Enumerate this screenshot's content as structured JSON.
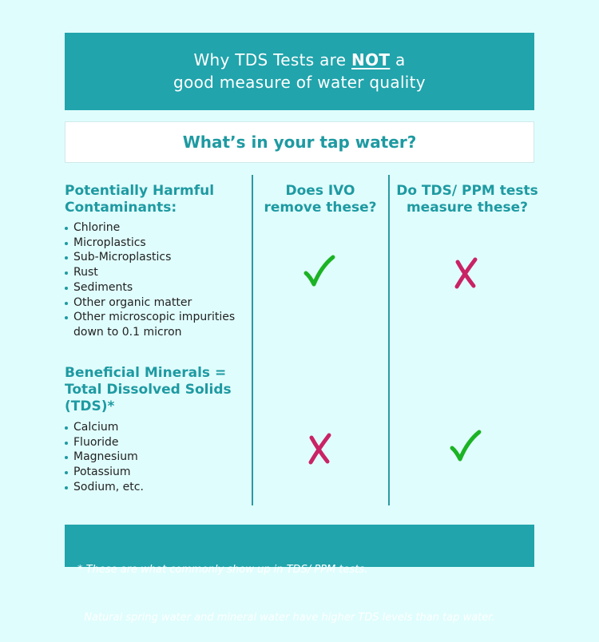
{
  "header": {
    "line1_before": "Why TDS Tests are ",
    "line1_emphasis": "NOT",
    "line1_after": " a",
    "line2": "good measure of water quality"
  },
  "question": "What’s in your tap water?",
  "columns": {
    "ivo_line1": "Does IVO",
    "ivo_line2": "remove these?",
    "tds_line1": "Do TDS/ PPM tests",
    "tds_line2": "measure these?"
  },
  "contaminants": {
    "heading_line1": "Potentially Harmful",
    "heading_line2": "Contaminants:",
    "items": [
      "Chlorine",
      "Microplastics",
      "Sub-Microplastics",
      "Rust",
      "Sediments",
      "Other organic matter",
      "Other microscopic impurities",
      "down to 0.1 micron"
    ],
    "ivo_removes": "check",
    "tds_measures": "cross"
  },
  "minerals": {
    "heading_line1": "Beneficial Minerals =",
    "heading_line2": "Total Dissolved Solids",
    "heading_line3": "(TDS)*",
    "items": [
      "Calcium",
      "Fluoride",
      "Magnesium",
      "Potassium",
      "Sodium, etc."
    ],
    "ivo_removes": "cross",
    "tds_measures": "check"
  },
  "footnote": {
    "line1": "* These are what commonly show up in TDS/ PPM tests.",
    "line2": "  Natural spring water and mineral water have higher TDS levels than tap water."
  },
  "colors": {
    "teal": "#21a4ac",
    "check_green": "#1bb324",
    "cross_pink": "#c92366",
    "background": "#e0fdfd"
  }
}
